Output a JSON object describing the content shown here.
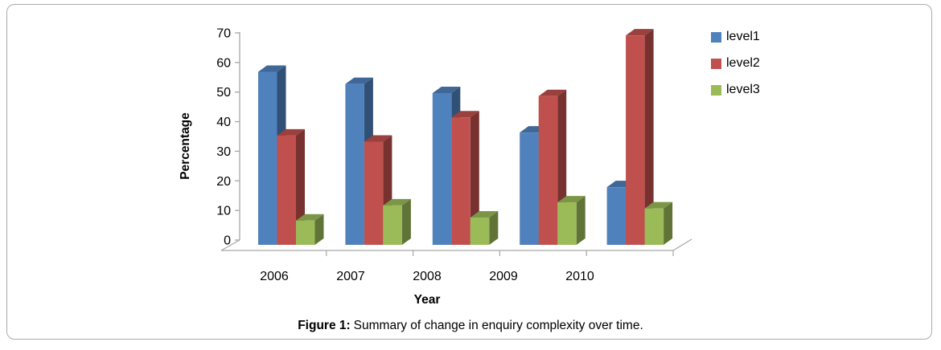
{
  "figure": {
    "caption_prefix": "Figure 1:",
    "caption_text": "Summary of change in enquiry complexity over time."
  },
  "chart_data": {
    "type": "bar",
    "variant": "3d-clustered-column",
    "title": "",
    "xlabel": "Year",
    "ylabel": "Percentage",
    "categories": [
      "2006",
      "2007",
      "2008",
      "2009",
      "2010"
    ],
    "series": [
      {
        "name": "level1",
        "color": "#4F81BD",
        "values": [
          57,
          53,
          50,
          37,
          19
        ]
      },
      {
        "name": "level2",
        "color": "#C0504D",
        "values": [
          36,
          34,
          42,
          49,
          69
        ]
      },
      {
        "name": "level3",
        "color": "#9BBB59",
        "values": [
          8,
          13,
          9,
          14,
          12
        ]
      }
    ],
    "ylim": [
      0,
      70
    ],
    "ytick_step": 10,
    "yticks": [
      0,
      10,
      20,
      30,
      40,
      50,
      60,
      70
    ],
    "grid": false,
    "legend_position": "right",
    "axis_color": "#a6a6a6"
  }
}
